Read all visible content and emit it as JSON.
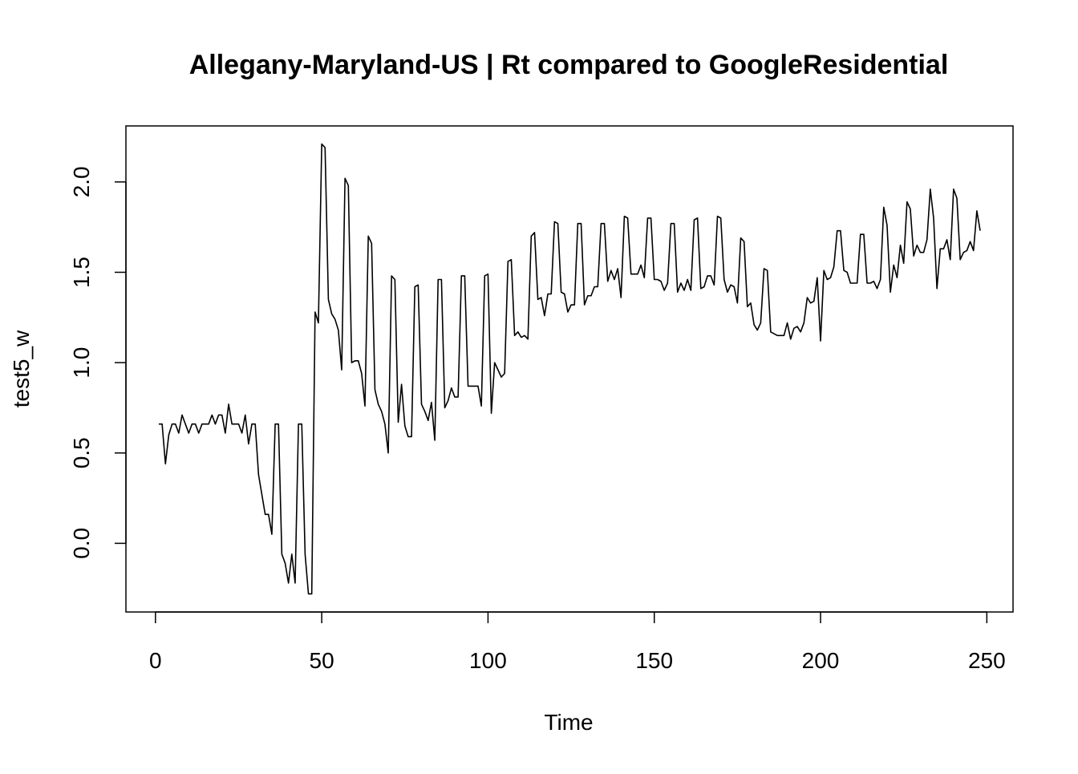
{
  "chart_data": {
    "type": "line",
    "title": "Allegany-Maryland-US | Rt compared to GoogleResidential",
    "xlabel": "Time",
    "ylabel": "test5_w",
    "color": "#000000",
    "x": [
      1,
      2,
      3,
      4,
      5,
      6,
      7,
      8,
      9,
      10,
      11,
      12,
      13,
      14,
      15,
      16,
      17,
      18,
      19,
      20,
      21,
      22,
      23,
      24,
      25,
      26,
      27,
      28,
      29,
      30,
      31,
      32,
      33,
      34,
      35,
      36,
      37,
      38,
      39,
      40,
      41,
      42,
      43,
      44,
      45,
      46,
      47,
      48,
      49,
      50,
      51,
      52,
      53,
      54,
      55,
      56,
      57,
      58,
      59,
      60,
      61,
      62,
      63,
      64,
      65,
      66,
      67,
      68,
      69,
      70,
      71,
      72,
      73,
      74,
      75,
      76,
      77,
      78,
      79,
      80,
      81,
      82,
      83,
      84,
      85,
      86,
      87,
      88,
      89,
      90,
      91,
      92,
      93,
      94,
      95,
      96,
      97,
      98,
      99,
      100,
      101,
      102,
      103,
      104,
      105,
      106,
      107,
      108,
      109,
      110,
      111,
      112,
      113,
      114,
      115,
      116,
      117,
      118,
      119,
      120,
      121,
      122,
      123,
      124,
      125,
      126,
      127,
      128,
      129,
      130,
      131,
      132,
      133,
      134,
      135,
      136,
      137,
      138,
      139,
      140,
      141,
      142,
      143,
      144,
      145,
      146,
      147,
      148,
      149,
      150,
      151,
      152,
      153,
      154,
      155,
      156,
      157,
      158,
      159,
      160,
      161,
      162,
      163,
      164,
      165,
      166,
      167,
      168,
      169,
      170,
      171,
      172,
      173,
      174,
      175,
      176,
      177,
      178,
      179,
      180,
      181,
      182,
      183,
      184,
      185,
      186,
      187,
      188,
      189,
      190,
      191,
      192,
      193,
      194,
      195,
      196,
      197,
      198,
      199,
      200,
      201,
      202,
      203,
      204,
      205,
      206,
      207,
      208,
      209,
      210,
      211,
      212,
      213,
      214,
      215,
      216,
      217,
      218,
      219,
      220,
      221,
      222,
      223,
      224,
      225,
      226,
      227,
      228,
      229,
      230,
      231,
      232,
      233,
      234,
      235,
      236,
      237,
      238,
      239,
      240,
      241,
      242,
      243,
      244,
      245,
      246,
      247,
      248
    ],
    "values": [
      0.66,
      0.66,
      0.44,
      0.6,
      0.66,
      0.66,
      0.61,
      0.71,
      0.66,
      0.61,
      0.66,
      0.66,
      0.61,
      0.66,
      0.66,
      0.66,
      0.71,
      0.66,
      0.71,
      0.71,
      0.61,
      0.77,
      0.66,
      0.66,
      0.66,
      0.61,
      0.71,
      0.55,
      0.66,
      0.66,
      0.38,
      0.27,
      0.16,
      0.16,
      0.05,
      0.66,
      0.66,
      -0.06,
      -0.11,
      -0.22,
      -0.06,
      -0.22,
      0.66,
      0.66,
      -0.06,
      -0.28,
      -0.28,
      1.28,
      1.22,
      2.21,
      2.19,
      1.35,
      1.27,
      1.24,
      1.18,
      0.96,
      2.02,
      1.98,
      1.0,
      1.01,
      1.01,
      0.94,
      0.76,
      1.7,
      1.66,
      0.85,
      0.77,
      0.73,
      0.66,
      0.5,
      1.48,
      1.46,
      0.67,
      0.88,
      0.65,
      0.59,
      0.59,
      1.42,
      1.43,
      0.77,
      0.73,
      0.68,
      0.78,
      0.57,
      1.46,
      1.46,
      0.75,
      0.79,
      0.86,
      0.81,
      0.81,
      1.48,
      1.48,
      0.87,
      0.87,
      0.87,
      0.87,
      0.76,
      1.48,
      1.49,
      0.72,
      1.0,
      0.96,
      0.92,
      0.94,
      1.56,
      1.57,
      1.15,
      1.17,
      1.14,
      1.15,
      1.13,
      1.7,
      1.72,
      1.35,
      1.36,
      1.26,
      1.38,
      1.38,
      1.78,
      1.77,
      1.39,
      1.38,
      1.28,
      1.32,
      1.32,
      1.77,
      1.77,
      1.32,
      1.37,
      1.37,
      1.42,
      1.42,
      1.77,
      1.77,
      1.45,
      1.51,
      1.46,
      1.52,
      1.36,
      1.81,
      1.8,
      1.49,
      1.49,
      1.49,
      1.54,
      1.47,
      1.8,
      1.8,
      1.46,
      1.46,
      1.45,
      1.4,
      1.44,
      1.77,
      1.77,
      1.39,
      1.44,
      1.4,
      1.46,
      1.4,
      1.79,
      1.8,
      1.41,
      1.42,
      1.48,
      1.48,
      1.43,
      1.81,
      1.8,
      1.46,
      1.39,
      1.43,
      1.42,
      1.33,
      1.69,
      1.67,
      1.31,
      1.33,
      1.21,
      1.18,
      1.22,
      1.52,
      1.51,
      1.17,
      1.16,
      1.15,
      1.15,
      1.15,
      1.22,
      1.13,
      1.19,
      1.2,
      1.17,
      1.22,
      1.36,
      1.33,
      1.34,
      1.47,
      1.12,
      1.51,
      1.46,
      1.47,
      1.53,
      1.73,
      1.73,
      1.51,
      1.5,
      1.44,
      1.44,
      1.44,
      1.71,
      1.71,
      1.44,
      1.44,
      1.45,
      1.41,
      1.46,
      1.86,
      1.76,
      1.39,
      1.54,
      1.47,
      1.65,
      1.55,
      1.89,
      1.85,
      1.59,
      1.65,
      1.61,
      1.61,
      1.68,
      1.96,
      1.8,
      1.41,
      1.63,
      1.63,
      1.68,
      1.57,
      1.96,
      1.91,
      1.57,
      1.61,
      1.62,
      1.67,
      1.62,
      1.84,
      1.73
    ],
    "xlim": [
      -8.88,
      257.88
    ],
    "xticks": [
      0,
      50,
      100,
      150,
      200,
      250
    ],
    "ylim": [
      -0.38,
      2.31
    ],
    "yticks": [
      {
        "value": 0,
        "label": "0.0"
      },
      0.5,
      {
        "value": 1,
        "label": "1.0"
      },
      1.5,
      {
        "value": 2,
        "label": "2.0"
      }
    ]
  }
}
